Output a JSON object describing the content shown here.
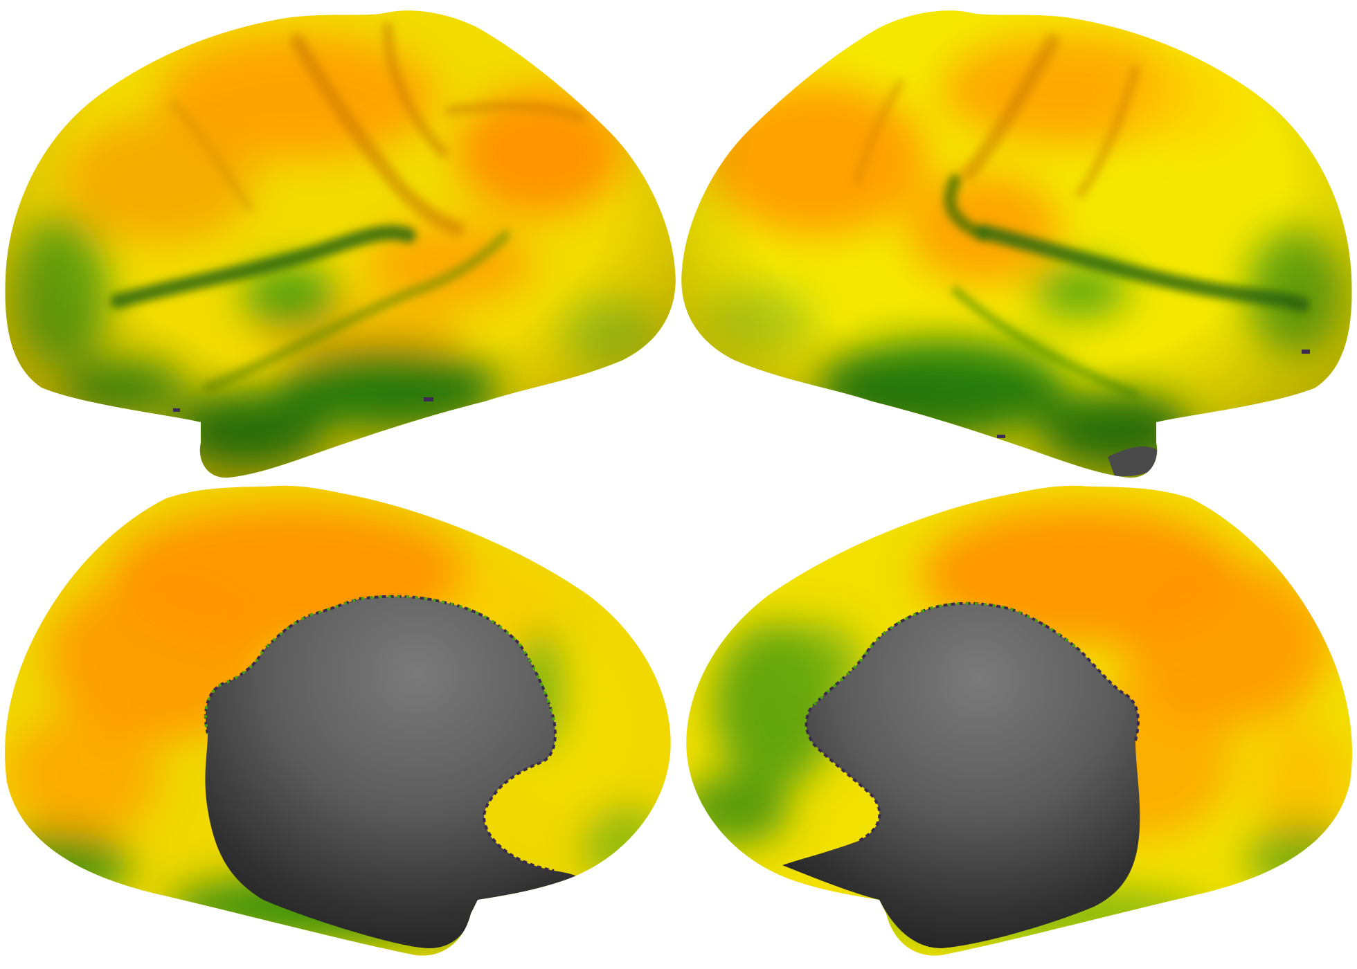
{
  "figure": {
    "description_type": "cortical-surface-map",
    "panels": [
      {
        "id": "left-lateral",
        "view": "lateral",
        "hemisphere": "left"
      },
      {
        "id": "right-lateral",
        "view": "lateral",
        "hemisphere": "right"
      },
      {
        "id": "left-medial",
        "view": "medial",
        "hemisphere": "left"
      },
      {
        "id": "right-medial",
        "view": "medial",
        "hemisphere": "right"
      }
    ],
    "colors": {
      "background": "#ffffff",
      "low": "#1f7a12",
      "mid_low": "#7fc21a",
      "mid": "#f5f000",
      "high": "#ff8c00",
      "medial_wall": "#555555",
      "medial_wall_dark": "#262626"
    }
  }
}
